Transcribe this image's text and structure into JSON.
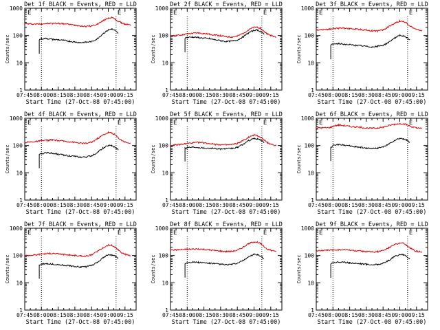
{
  "colors": {
    "events": "#000000",
    "lld": "#dd0000",
    "axis": "#000000",
    "marker": "#000000"
  },
  "chart_data": [
    {
      "type": "line",
      "title": "Det 1f BLACK = Events, RED = LLD",
      "xlabel": "Start Time (27-Oct-08 07:45:00)",
      "ylabel": "Counts/sec",
      "x_ticks": [
        "07:45",
        "08:00",
        "08:15",
        "08:30",
        "08:45",
        "09:00",
        "09:15"
      ],
      "y_ticks": [
        "1",
        "10",
        "100",
        "1000"
      ],
      "ylim": [
        1,
        1000
      ],
      "y_scale": "log",
      "flag_labels": [
        "E",
        "E"
      ],
      "marker_times": [
        "08:00",
        "09:07"
      ],
      "x": [
        "07:45",
        "07:50",
        "07:55",
        "07:58",
        "08:00",
        "08:05",
        "08:10",
        "08:15",
        "08:20",
        "08:25",
        "08:30",
        "08:35",
        "08:40",
        "08:45",
        "08:50",
        "08:55",
        "09:00",
        "09:03",
        "09:06",
        "09:09",
        "09:12",
        "09:15",
        "09:20"
      ],
      "series": [
        {
          "name": "LLD",
          "color": "#dd0000",
          "values": [
            270,
            265,
            262,
            265,
            270,
            275,
            278,
            280,
            270,
            255,
            240,
            225,
            215,
            225,
            260,
            340,
            440,
            460,
            400,
            330,
            290,
            260,
            240
          ]
        },
        {
          "name": "Events",
          "color": "#000000",
          "values": [
            null,
            null,
            null,
            70,
            76,
            78,
            72,
            70,
            66,
            62,
            58,
            55,
            57,
            60,
            75,
            115,
            160,
            175,
            150,
            120,
            null,
            null,
            null
          ]
        }
      ]
    },
    {
      "type": "line",
      "title": "Det 2f BLACK = Events, RED = LLD",
      "xlabel": "Start Time (27-Oct-08 07:45:00)",
      "ylabel": "Counts/sec",
      "x_ticks": [
        "07:45",
        "08:00",
        "08:15",
        "08:30",
        "08:45",
        "09:00",
        "09:15"
      ],
      "y_ticks": [
        "1",
        "10",
        "100",
        "1000"
      ],
      "ylim": [
        1,
        1000
      ],
      "y_scale": "log",
      "flag_labels": [
        "E",
        "E"
      ],
      "marker_times": [
        "08:00",
        "09:07"
      ],
      "x": [
        "07:45",
        "07:50",
        "07:55",
        "07:58",
        "08:00",
        "08:05",
        "08:10",
        "08:15",
        "08:20",
        "08:25",
        "08:30",
        "08:35",
        "08:40",
        "08:45",
        "08:50",
        "08:55",
        "09:00",
        "09:03",
        "09:06",
        "09:09",
        "09:12",
        "09:15",
        "09:20"
      ],
      "series": [
        {
          "name": "LLD",
          "color": "#dd0000",
          "values": [
            95,
            100,
            105,
            110,
            115,
            120,
            125,
            118,
            112,
            105,
            98,
            90,
            88,
            95,
            120,
            160,
            200,
            205,
            180,
            140,
            115,
            100,
            90
          ]
        },
        {
          "name": "Events",
          "color": "#000000",
          "values": [
            null,
            null,
            null,
            80,
            85,
            88,
            84,
            80,
            76,
            70,
            65,
            60,
            62,
            68,
            88,
            125,
            155,
            160,
            140,
            110,
            null,
            null,
            null
          ]
        }
      ]
    },
    {
      "type": "line",
      "title": "Det 3f BLACK = Events, RED = LLD",
      "xlabel": "Start Time (27-Oct-08 07:45:00)",
      "ylabel": "Counts/sec",
      "x_ticks": [
        "07:45",
        "08:00",
        "08:15",
        "08:30",
        "08:45",
        "09:00",
        "09:15"
      ],
      "y_ticks": [
        "1",
        "10",
        "100",
        "1000"
      ],
      "ylim": [
        1,
        1000
      ],
      "y_scale": "log",
      "flag_labels": [
        "E",
        "E"
      ],
      "marker_times": [
        "08:00",
        "09:07"
      ],
      "x": [
        "07:45",
        "07:50",
        "07:55",
        "07:58",
        "08:00",
        "08:05",
        "08:10",
        "08:15",
        "08:20",
        "08:25",
        "08:30",
        "08:35",
        "08:40",
        "08:45",
        "08:50",
        "08:55",
        "09:00",
        "09:03",
        "09:06",
        "09:09",
        "09:12",
        "09:15",
        "09:20"
      ],
      "series": [
        {
          "name": "LLD",
          "color": "#dd0000",
          "values": [
            160,
            165,
            170,
            175,
            180,
            185,
            188,
            180,
            172,
            165,
            158,
            150,
            148,
            160,
            210,
            280,
            340,
            330,
            290,
            230,
            190,
            165,
            150
          ]
        },
        {
          "name": "Events",
          "color": "#000000",
          "values": [
            null,
            null,
            null,
            45,
            48,
            50,
            48,
            46,
            44,
            42,
            40,
            38,
            40,
            44,
            56,
            80,
            100,
            95,
            85,
            70,
            null,
            null,
            null
          ]
        }
      ]
    },
    {
      "type": "line",
      "title": "Det 4f BLACK = Events, RED = LLD",
      "xlabel": "Start Time (27-Oct-08 07:45:00)",
      "ylabel": "Counts/sec",
      "x_ticks": [
        "07:45",
        "08:00",
        "08:15",
        "08:30",
        "08:45",
        "09:00",
        "09:15"
      ],
      "y_ticks": [
        "1",
        "10",
        "100",
        "1000"
      ],
      "ylim": [
        1,
        1000
      ],
      "y_scale": "log",
      "flag_labels": [
        "E",
        "E"
      ],
      "marker_times": [
        "08:00",
        "09:07"
      ],
      "x": [
        "07:45",
        "07:50",
        "07:55",
        "07:58",
        "08:00",
        "08:05",
        "08:10",
        "08:15",
        "08:20",
        "08:25",
        "08:30",
        "08:35",
        "08:40",
        "08:45",
        "08:50",
        "08:55",
        "09:00",
        "09:03",
        "09:06",
        "09:09",
        "09:12",
        "09:15",
        "09:20"
      ],
      "series": [
        {
          "name": "LLD",
          "color": "#dd0000",
          "values": [
            130,
            135,
            140,
            145,
            150,
            155,
            160,
            152,
            145,
            138,
            130,
            122,
            120,
            132,
            175,
            240,
            300,
            290,
            250,
            190,
            155,
            135,
            120
          ]
        },
        {
          "name": "Events",
          "color": "#000000",
          "values": [
            null,
            null,
            null,
            45,
            50,
            55,
            52,
            48,
            45,
            42,
            40,
            37,
            38,
            42,
            55,
            80,
            100,
            98,
            85,
            70,
            null,
            null,
            null
          ]
        }
      ]
    },
    {
      "type": "line",
      "title": "Det 5f BLACK = Events, RED = LLD",
      "xlabel": "Start Time (27-Oct-08 07:45:00)",
      "ylabel": "Counts/sec",
      "x_ticks": [
        "07:45",
        "08:00",
        "08:15",
        "08:30",
        "08:45",
        "09:00",
        "09:15"
      ],
      "y_ticks": [
        "1",
        "10",
        "100",
        "1000"
      ],
      "ylim": [
        1,
        1000
      ],
      "y_scale": "log",
      "flag_labels": [
        "E",
        "E"
      ],
      "marker_times": [
        "08:00",
        "09:07"
      ],
      "x": [
        "07:45",
        "07:50",
        "07:55",
        "07:58",
        "08:00",
        "08:05",
        "08:10",
        "08:15",
        "08:20",
        "08:25",
        "08:30",
        "08:35",
        "08:40",
        "08:45",
        "08:50",
        "08:55",
        "09:00",
        "09:03",
        "09:06",
        "09:09",
        "09:12",
        "09:15",
        "09:20"
      ],
      "series": [
        {
          "name": "LLD",
          "color": "#dd0000",
          "values": [
            100,
            105,
            110,
            115,
            120,
            125,
            130,
            125,
            118,
            112,
            108,
            105,
            108,
            118,
            150,
            200,
            240,
            230,
            200,
            160,
            130,
            110,
            100
          ]
        },
        {
          "name": "Events",
          "color": "#000000",
          "values": [
            null,
            null,
            null,
            80,
            85,
            88,
            86,
            82,
            80,
            78,
            76,
            75,
            78,
            85,
            110,
            150,
            180,
            175,
            160,
            130,
            null,
            null,
            null
          ]
        }
      ]
    },
    {
      "type": "line",
      "title": "Det 6f BLACK = Events, RED = LLD",
      "xlabel": "Start Time (27-Oct-08 07:45:00)",
      "ylabel": "Counts/sec",
      "x_ticks": [
        "07:45",
        "08:00",
        "08:15",
        "08:30",
        "08:45",
        "09:00",
        "09:15"
      ],
      "y_ticks": [
        "1",
        "10",
        "100",
        "1000"
      ],
      "ylim": [
        1,
        1000
      ],
      "y_scale": "log",
      "flag_labels": [
        "E",
        "E"
      ],
      "marker_times": [
        "08:00",
        "09:07"
      ],
      "x": [
        "07:45",
        "07:50",
        "07:55",
        "07:58",
        "08:00",
        "08:05",
        "08:10",
        "08:15",
        "08:20",
        "08:25",
        "08:30",
        "08:35",
        "08:40",
        "08:45",
        "08:50",
        "08:55",
        "09:00",
        "09:03",
        "09:06",
        "09:09",
        "09:12",
        "09:15",
        "09:20"
      ],
      "series": [
        {
          "name": "LLD",
          "color": "#dd0000",
          "values": [
            440,
            445,
            450,
            460,
            520,
            560,
            540,
            500,
            480,
            460,
            440,
            430,
            440,
            470,
            540,
            600,
            640,
            630,
            580,
            520,
            470,
            440,
            420
          ]
        },
        {
          "name": "Events",
          "color": "#000000",
          "values": [
            null,
            null,
            null,
            85,
            100,
            110,
            105,
            95,
            90,
            85,
            80,
            78,
            80,
            88,
            110,
            150,
            180,
            175,
            160,
            130,
            null,
            null,
            null
          ]
        }
      ]
    },
    {
      "type": "line",
      "title": "Det 7f BLACK = Events, RED = LLD",
      "xlabel": "Start Time (27-Oct-08 07:45:00)",
      "ylabel": "Counts/sec",
      "x_ticks": [
        "07:45",
        "08:00",
        "08:15",
        "08:30",
        "08:45",
        "09:00",
        "09:15"
      ],
      "y_ticks": [
        "1",
        "10",
        "100",
        "1000"
      ],
      "ylim": [
        1,
        1000
      ],
      "y_scale": "log",
      "flag_labels": [
        "E",
        "E"
      ],
      "marker_times": [
        "08:00",
        "09:07"
      ],
      "x": [
        "07:45",
        "07:50",
        "07:55",
        "07:58",
        "08:00",
        "08:05",
        "08:10",
        "08:15",
        "08:20",
        "08:25",
        "08:30",
        "08:35",
        "08:40",
        "08:45",
        "08:50",
        "08:55",
        "09:00",
        "09:03",
        "09:06",
        "09:09",
        "09:12",
        "09:15",
        "09:20"
      ],
      "series": [
        {
          "name": "LLD",
          "color": "#dd0000",
          "values": [
            100,
            102,
            105,
            110,
            115,
            118,
            120,
            115,
            110,
            105,
            100,
            96,
            95,
            105,
            140,
            190,
            240,
            235,
            205,
            160,
            125,
            110,
            100
          ]
        },
        {
          "name": "Events",
          "color": "#000000",
          "values": [
            null,
            null,
            null,
            45,
            48,
            50,
            48,
            46,
            44,
            42,
            40,
            38,
            39,
            43,
            55,
            80,
            110,
            105,
            95,
            75,
            null,
            null,
            null
          ]
        }
      ]
    },
    {
      "type": "line",
      "title": "Det 8f BLACK = Events, RED = LLD",
      "xlabel": "Start Time (27-Oct-08 07:45:00)",
      "ylabel": "Counts/sec",
      "x_ticks": [
        "07:45",
        "08:00",
        "08:15",
        "08:30",
        "08:45",
        "09:00",
        "09:15"
      ],
      "y_ticks": [
        "1",
        "10",
        "100",
        "1000"
      ],
      "ylim": [
        1,
        1000
      ],
      "y_scale": "log",
      "flag_labels": [
        "E",
        "E"
      ],
      "marker_times": [
        "08:00",
        "09:07"
      ],
      "x": [
        "07:45",
        "07:50",
        "07:55",
        "07:58",
        "08:00",
        "08:05",
        "08:10",
        "08:15",
        "08:20",
        "08:25",
        "08:30",
        "08:35",
        "08:40",
        "08:45",
        "08:50",
        "08:55",
        "09:00",
        "09:03",
        "09:06",
        "09:09",
        "09:12",
        "09:15",
        "09:20"
      ],
      "series": [
        {
          "name": "LLD",
          "color": "#dd0000",
          "values": [
            160,
            162,
            165,
            168,
            170,
            172,
            175,
            168,
            160,
            152,
            145,
            140,
            142,
            155,
            200,
            270,
            320,
            310,
            270,
            210,
            170,
            155,
            145
          ]
        },
        {
          "name": "Events",
          "color": "#000000",
          "values": [
            null,
            null,
            null,
            50,
            55,
            58,
            56,
            54,
            52,
            50,
            48,
            46,
            47,
            52,
            65,
            90,
            110,
            105,
            95,
            75,
            null,
            null,
            null
          ]
        }
      ]
    },
    {
      "type": "line",
      "title": "Det 9f BLACK = Events, RED = LLD",
      "xlabel": "Start Time (27-Oct-08 07:45:00)",
      "ylabel": "Counts/sec",
      "x_ticks": [
        "07:45",
        "08:00",
        "08:15",
        "08:30",
        "08:45",
        "09:00",
        "09:15"
      ],
      "y_ticks": [
        "1",
        "10",
        "100",
        "1000"
      ],
      "ylim": [
        1,
        1000
      ],
      "y_scale": "log",
      "flag_labels": [
        "E",
        "E"
      ],
      "marker_times": [
        "08:00",
        "09:07"
      ],
      "x": [
        "07:45",
        "07:50",
        "07:55",
        "07:58",
        "08:00",
        "08:05",
        "08:10",
        "08:15",
        "08:20",
        "08:25",
        "08:30",
        "08:35",
        "08:40",
        "08:45",
        "08:50",
        "08:55",
        "09:00",
        "09:03",
        "09:06",
        "09:09",
        "09:12",
        "09:15",
        "09:20"
      ],
      "series": [
        {
          "name": "LLD",
          "color": "#dd0000",
          "values": [
            150,
            152,
            155,
            158,
            160,
            162,
            165,
            158,
            150,
            145,
            140,
            135,
            138,
            150,
            190,
            250,
            290,
            280,
            245,
            195,
            160,
            145,
            135
          ]
        },
        {
          "name": "Events",
          "color": "#000000",
          "values": [
            null,
            null,
            null,
            50,
            55,
            58,
            56,
            54,
            52,
            50,
            48,
            46,
            47,
            52,
            65,
            90,
            110,
            105,
            95,
            75,
            null,
            null,
            null
          ]
        }
      ]
    }
  ]
}
